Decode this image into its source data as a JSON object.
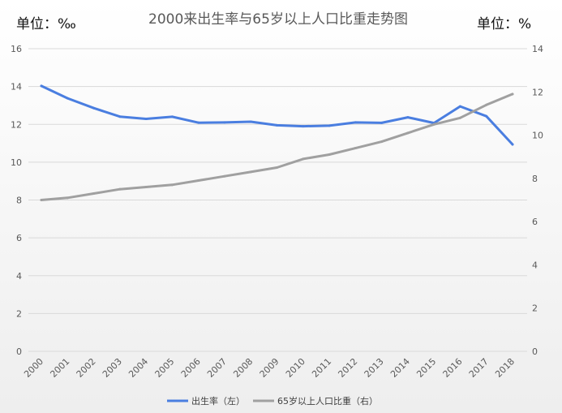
{
  "chart_data": {
    "type": "line",
    "title": "2000来出生率与65岁以上人口比重走势图",
    "left_unit": "单位：‰",
    "right_unit": "单位：%",
    "categories": [
      "2000",
      "2001",
      "2002",
      "2003",
      "2004",
      "2005",
      "2006",
      "2007",
      "2008",
      "2009",
      "2010",
      "2011",
      "2012",
      "2013",
      "2014",
      "2015",
      "2016",
      "2017",
      "2018"
    ],
    "y_left": {
      "min": 0,
      "max": 16,
      "ticks": [
        0,
        2,
        4,
        6,
        8,
        10,
        12,
        14,
        16
      ]
    },
    "y_right": {
      "min": 0,
      "max": 14,
      "ticks": [
        0,
        2,
        4,
        6,
        8,
        10,
        12,
        14
      ]
    },
    "grid": true,
    "legend_position": "bottom",
    "series": [
      {
        "name": "出生率（左）",
        "axis": "left",
        "color": "#4a7ee0",
        "values": [
          14.03,
          13.38,
          12.86,
          12.41,
          12.29,
          12.4,
          12.09,
          12.1,
          12.14,
          11.95,
          11.9,
          11.93,
          12.1,
          12.08,
          12.37,
          12.07,
          12.95,
          12.43,
          10.94
        ]
      },
      {
        "name": "65岁以上人口比重（右）",
        "axis": "right",
        "color": "#a0a0a0",
        "values": [
          7.0,
          7.1,
          7.3,
          7.5,
          7.6,
          7.7,
          7.9,
          8.1,
          8.3,
          8.5,
          8.9,
          9.1,
          9.4,
          9.7,
          10.1,
          10.5,
          10.8,
          11.4,
          11.9
        ]
      }
    ]
  }
}
